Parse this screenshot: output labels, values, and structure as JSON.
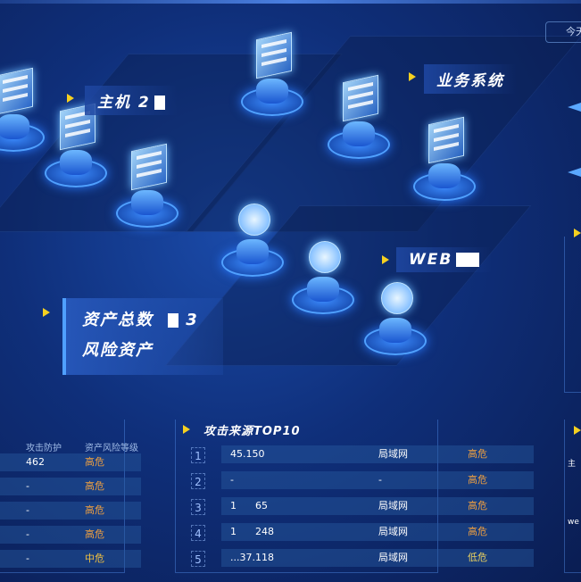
{
  "header": {
    "today_button": "今天"
  },
  "labels": {
    "host": "主机 2",
    "business": "业务系统",
    "web": "WEB"
  },
  "stats": {
    "total_label": "资产总数",
    "total_value": "3",
    "risk_label": "风险资产"
  },
  "left_table": {
    "headers": [
      "攻击防护",
      "资产风险等级"
    ],
    "rows": [
      {
        "defense": "462",
        "level": "高危"
      },
      {
        "defense": "-",
        "level": "高危"
      },
      {
        "defense": "-",
        "level": "高危"
      },
      {
        "defense": "-",
        "level": "高危"
      },
      {
        "defense": "-",
        "level": "中危"
      }
    ]
  },
  "attack_top10": {
    "title": "攻击来源TOP10",
    "rows": [
      {
        "rank": "1",
        "ip": "45.150",
        "network": "局域网",
        "level": "高危"
      },
      {
        "rank": "2",
        "ip": "-",
        "network": "-",
        "level": "高危"
      },
      {
        "rank": "3",
        "ip": "1      65",
        "network": "局域网",
        "level": "高危"
      },
      {
        "rank": "4",
        "ip": "1      248",
        "network": "局域网",
        "level": "高危"
      },
      {
        "rank": "5",
        "ip": "...37.118",
        "network": "局域网",
        "level": "低危"
      }
    ]
  },
  "right_panel": {
    "row1": "主",
    "row2": "we"
  },
  "colors": {
    "high": "#f0a040",
    "medium": "#f0c040",
    "low": "#e8d060",
    "accent": "#f5d020"
  }
}
